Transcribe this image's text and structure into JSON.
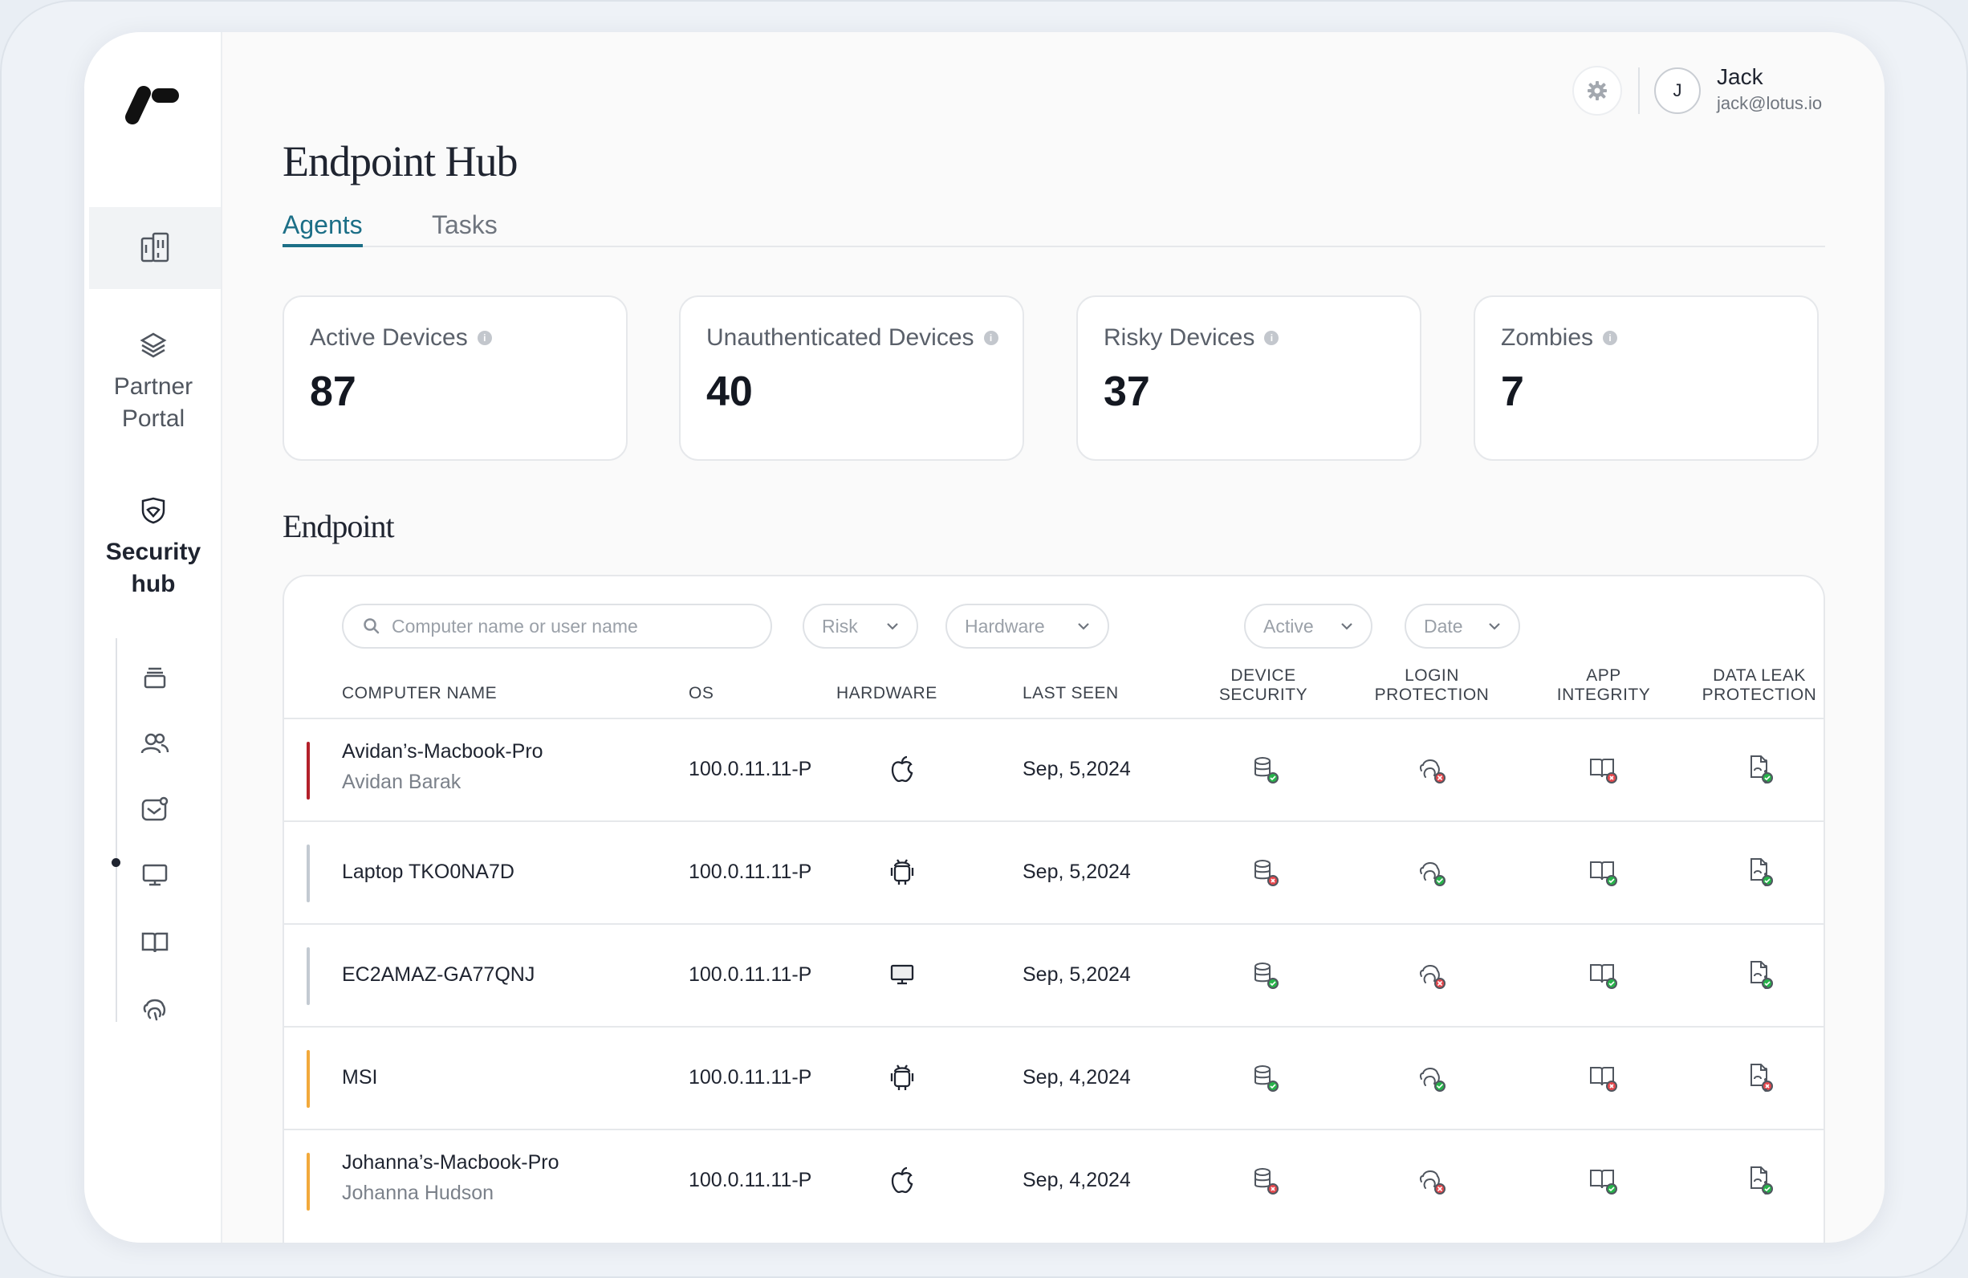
{
  "colors": {
    "accent": "#1c6f87",
    "risk_high": "#b3202a",
    "risk_low": "#c3cad2",
    "risk_medium": "#f2a93b",
    "ok": "#27b34a",
    "fail": "#e5484d"
  },
  "sidebar": {
    "items": [
      {
        "icon": "dashboard-icon"
      },
      {
        "icon": "layers-icon",
        "label": "Partner Portal"
      },
      {
        "icon": "shield-icon",
        "label": "Security hub"
      }
    ],
    "sub_items": [
      {
        "icon": "stack-icon"
      },
      {
        "icon": "users-icon"
      },
      {
        "icon": "mail-badge-icon"
      },
      {
        "icon": "monitor-icon",
        "active": true
      },
      {
        "icon": "book-icon"
      },
      {
        "icon": "fingerprint-icon"
      }
    ]
  },
  "header": {
    "user_initial": "J",
    "user_name": "Jack",
    "user_email": "jack@lotus.io"
  },
  "page": {
    "title": "Endpoint Hub"
  },
  "tabs": [
    {
      "label": "Agents",
      "active": true
    },
    {
      "label": "Tasks"
    }
  ],
  "stats": [
    {
      "label": "Active Devices",
      "value": "87"
    },
    {
      "label": "Unauthenticated Devices",
      "value": "40"
    },
    {
      "label": "Risky Devices",
      "value": "37"
    },
    {
      "label": "Zombies",
      "value": "7"
    }
  ],
  "endpoint": {
    "title": "Endpoint",
    "search_placeholder": "Computer name or user name",
    "filters": [
      "Risk",
      "Hardware",
      "Active",
      "Date"
    ],
    "columns": {
      "computer_name": "COMPUTER NAME",
      "os": "OS",
      "hardware": "HARDWARE",
      "last_seen": "LAST SEEN",
      "device_security_1": "DEVICE",
      "device_security_2": "SECURITY",
      "login_protection_1": "LOGIN",
      "login_protection_2": "PROTECTION",
      "app_integrity_1": "APP",
      "app_integrity_2": "INTEGRITY",
      "data_leak_1": "DATA LEAK",
      "data_leak_2": "PROTECTION"
    },
    "rows": [
      {
        "name": "Avidan’s-Macbook-Pro",
        "user": "Avidan Barak",
        "os": "100.0.11.11-P",
        "hardware": "apple-icon",
        "last_seen": "Sep, 5,2024",
        "risk": "high",
        "device_security": "ok",
        "login_protection": "fail",
        "app_integrity": "fail",
        "data_leak": "ok"
      },
      {
        "name": "Laptop TKO0NA7D",
        "user": "",
        "os": "100.0.11.11-P",
        "hardware": "android-icon",
        "last_seen": "Sep, 5,2024",
        "risk": "low",
        "device_security": "fail",
        "login_protection": "ok",
        "app_integrity": "ok",
        "data_leak": "ok"
      },
      {
        "name": "EC2AMAZ-GA77QNJ",
        "user": "",
        "os": "100.0.11.11-P",
        "hardware": "desktop-icon",
        "last_seen": "Sep, 5,2024",
        "risk": "low",
        "device_security": "ok",
        "login_protection": "fail",
        "app_integrity": "ok",
        "data_leak": "ok"
      },
      {
        "name": "MSI",
        "user": "",
        "os": "100.0.11.11-P",
        "hardware": "android-icon",
        "last_seen": "Sep, 4,2024",
        "risk": "medium",
        "device_security": "ok",
        "login_protection": "ok",
        "app_integrity": "fail",
        "data_leak": "fail"
      },
      {
        "name": "Johanna’s-Macbook-Pro",
        "user": "Johanna Hudson",
        "os": "100.0.11.11-P",
        "hardware": "apple-icon",
        "last_seen": "Sep, 4,2024",
        "risk": "medium",
        "device_security": "fail",
        "login_protection": "fail",
        "app_integrity": "ok",
        "data_leak": "ok"
      }
    ]
  }
}
